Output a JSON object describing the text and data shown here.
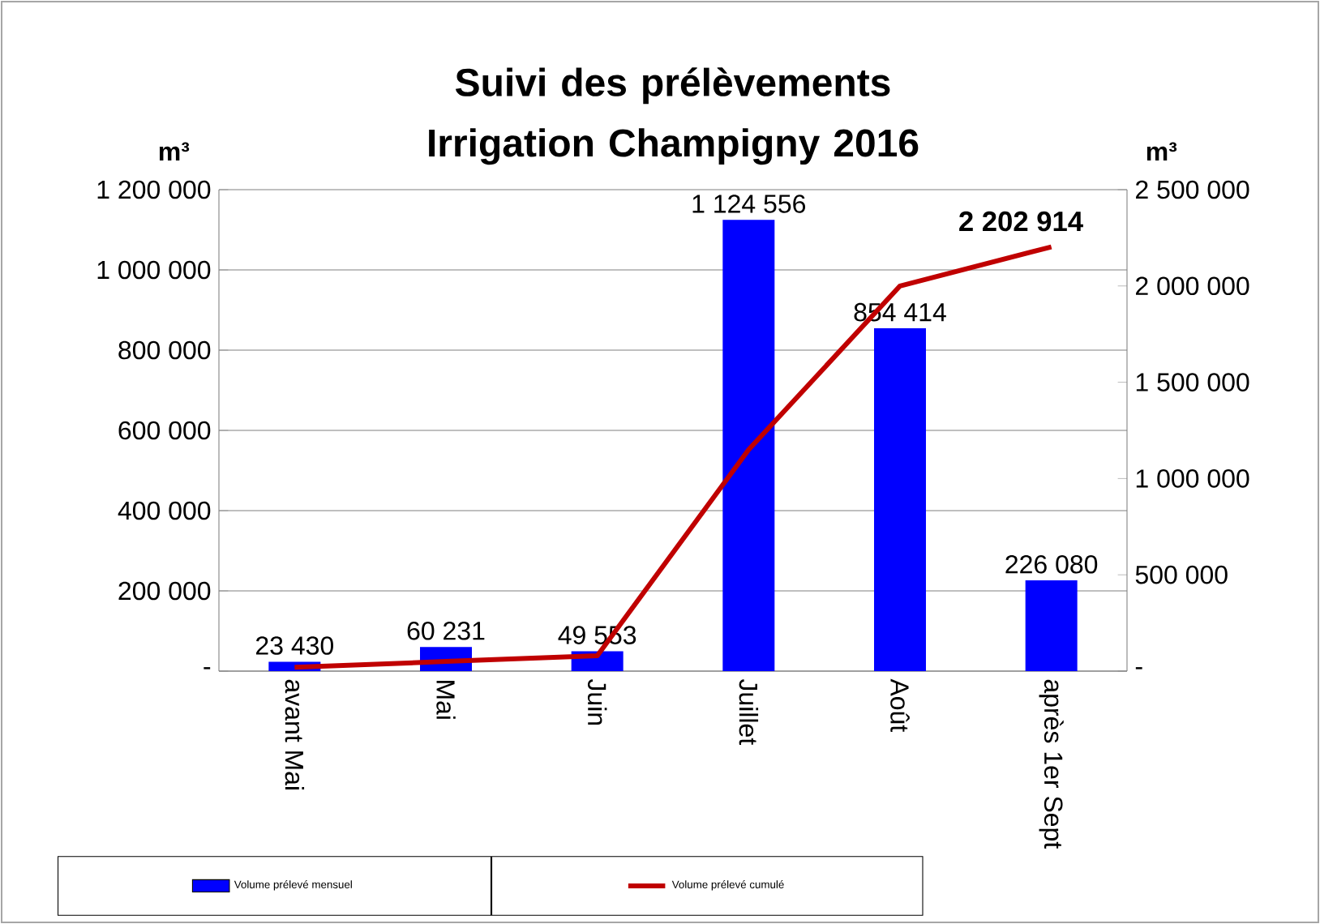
{
  "chart_data": {
    "type": "bar",
    "title": "Suivi des prélèvements Irrigation Champigny 2016",
    "ylabel": "m³",
    "y2label": "m³",
    "categories": [
      "avant Mai",
      "Mai",
      "Juin",
      "Juillet",
      "Août",
      "après 1er Sept"
    ],
    "series": [
      {
        "name": "Volume prélevé mensuel",
        "color": "#0000ff",
        "values": [
          23430,
          60231,
          49553,
          1124556,
          854414,
          226080
        ],
        "value_labels": [
          "23 430",
          "60 231",
          "49 553",
          "1 124 556",
          "854 414",
          "226 080"
        ]
      },
      {
        "name": "Volume prélevé cumulé",
        "type": "line",
        "axis": "y2",
        "color": "#c00000",
        "values": [
          20000,
          50000,
          80000,
          1150000,
          2000000,
          2202914
        ],
        "value_labels": [
          null,
          null,
          null,
          null,
          null,
          "2 202 914"
        ]
      }
    ],
    "ylim": [
      0,
      1200000
    ],
    "yticks": [
      {
        "value": 0,
        "label": "-"
      },
      {
        "value": 200000,
        "label": "200 000"
      },
      {
        "value": 400000,
        "label": "400 000"
      },
      {
        "value": 600000,
        "label": "600 000"
      },
      {
        "value": 800000,
        "label": "800 000"
      },
      {
        "value": 1000000,
        "label": "1 000 000"
      },
      {
        "value": 1200000,
        "label": "1 200 000"
      }
    ],
    "y2lim": [
      0,
      2500000
    ],
    "y2ticks": [
      {
        "value": 0,
        "label": "-"
      },
      {
        "value": 500000,
        "label": "500 000"
      },
      {
        "value": 1000000,
        "label": "1 000 000"
      },
      {
        "value": 1500000,
        "label": "1 500 000"
      },
      {
        "value": 2000000,
        "label": "2 000 000"
      },
      {
        "value": 2500000,
        "label": "2 500 000"
      }
    ],
    "grid": "y",
    "legend": "bottom left"
  }
}
